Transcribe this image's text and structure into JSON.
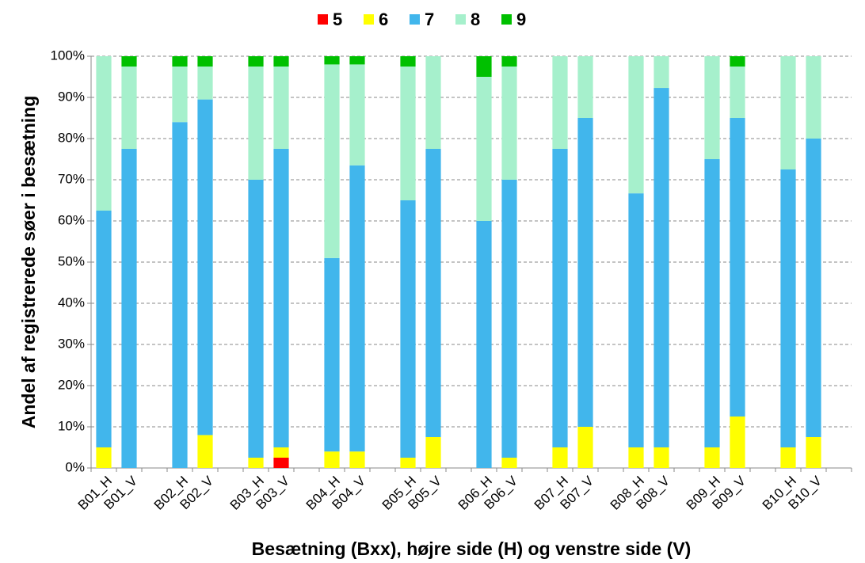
{
  "chart_data": {
    "type": "stacked_bar",
    "x_label": "Besætning (Bxx), højre side (H) og venstre side (V)",
    "y_label": "Andel af  registrerede søer i besætning",
    "categories": [
      "B01_H",
      "B01_V",
      null,
      "B02_H",
      "B02_V",
      null,
      "B03_H",
      "B03_V",
      null,
      "B04_H",
      "B04_V",
      null,
      "B05_H",
      "B05_V",
      null,
      "B06_H",
      "B06_V",
      null,
      "B07_H",
      "B07_V",
      null,
      "B08_H",
      "B08_V",
      null,
      "B09_H",
      "B09_V",
      null,
      "B10_H",
      "B10_V",
      null
    ],
    "series": [
      {
        "name": "5",
        "color": "#ff0000",
        "values": [
          0,
          0,
          null,
          0,
          0,
          null,
          0,
          2.5,
          null,
          0,
          0,
          null,
          0,
          0,
          null,
          0,
          0,
          null,
          0,
          0,
          null,
          0,
          0,
          null,
          0,
          0,
          null,
          0,
          0,
          null
        ]
      },
      {
        "name": "6",
        "color": "#ffff00",
        "values": [
          5,
          0,
          null,
          0,
          8,
          null,
          2.5,
          2.5,
          null,
          4,
          4,
          null,
          2.5,
          7.5,
          null,
          0,
          2.5,
          null,
          5,
          10,
          null,
          5,
          5,
          null,
          5,
          12.5,
          null,
          5,
          7.5,
          null
        ]
      },
      {
        "name": "7",
        "color": "#41b6ec",
        "values": [
          57.5,
          77.5,
          null,
          84,
          81.5,
          null,
          67.5,
          72.5,
          null,
          47,
          69.5,
          null,
          62.5,
          70,
          null,
          60,
          67.5,
          null,
          72.5,
          75,
          null,
          61.7,
          87.3,
          null,
          70,
          72.5,
          null,
          67.5,
          72.5,
          null
        ]
      },
      {
        "name": "8",
        "color": "#a6f0cc",
        "values": [
          37.5,
          20,
          null,
          13.5,
          8,
          null,
          27.5,
          20,
          null,
          47,
          24.5,
          null,
          32.5,
          22.5,
          null,
          35,
          27.5,
          null,
          22.5,
          15,
          null,
          33.3,
          7.7,
          null,
          25,
          12.5,
          null,
          27.5,
          20,
          null
        ]
      },
      {
        "name": "9",
        "color": "#00c000",
        "values": [
          0,
          2.5,
          null,
          2.5,
          2.5,
          null,
          2.5,
          2.5,
          null,
          2,
          2,
          null,
          2.5,
          0,
          null,
          5,
          2.5,
          null,
          0,
          0,
          null,
          0,
          0,
          null,
          0,
          2.5,
          null,
          0,
          0,
          null
        ]
      }
    ],
    "ylim": [
      0,
      100
    ],
    "yticks": [
      {
        "value": 0,
        "label": "0%"
      },
      {
        "value": 10,
        "label": "10%"
      },
      {
        "value": 20,
        "label": "20%"
      },
      {
        "value": 30,
        "label": "30%"
      },
      {
        "value": 40,
        "label": "40%"
      },
      {
        "value": 50,
        "label": "50%"
      },
      {
        "value": 60,
        "label": "60%"
      },
      {
        "value": 70,
        "label": "70%"
      },
      {
        "value": 80,
        "label": "80%"
      },
      {
        "value": 90,
        "label": "90%"
      },
      {
        "value": 100,
        "label": "100%"
      }
    ],
    "grid": true,
    "legend": "top"
  }
}
